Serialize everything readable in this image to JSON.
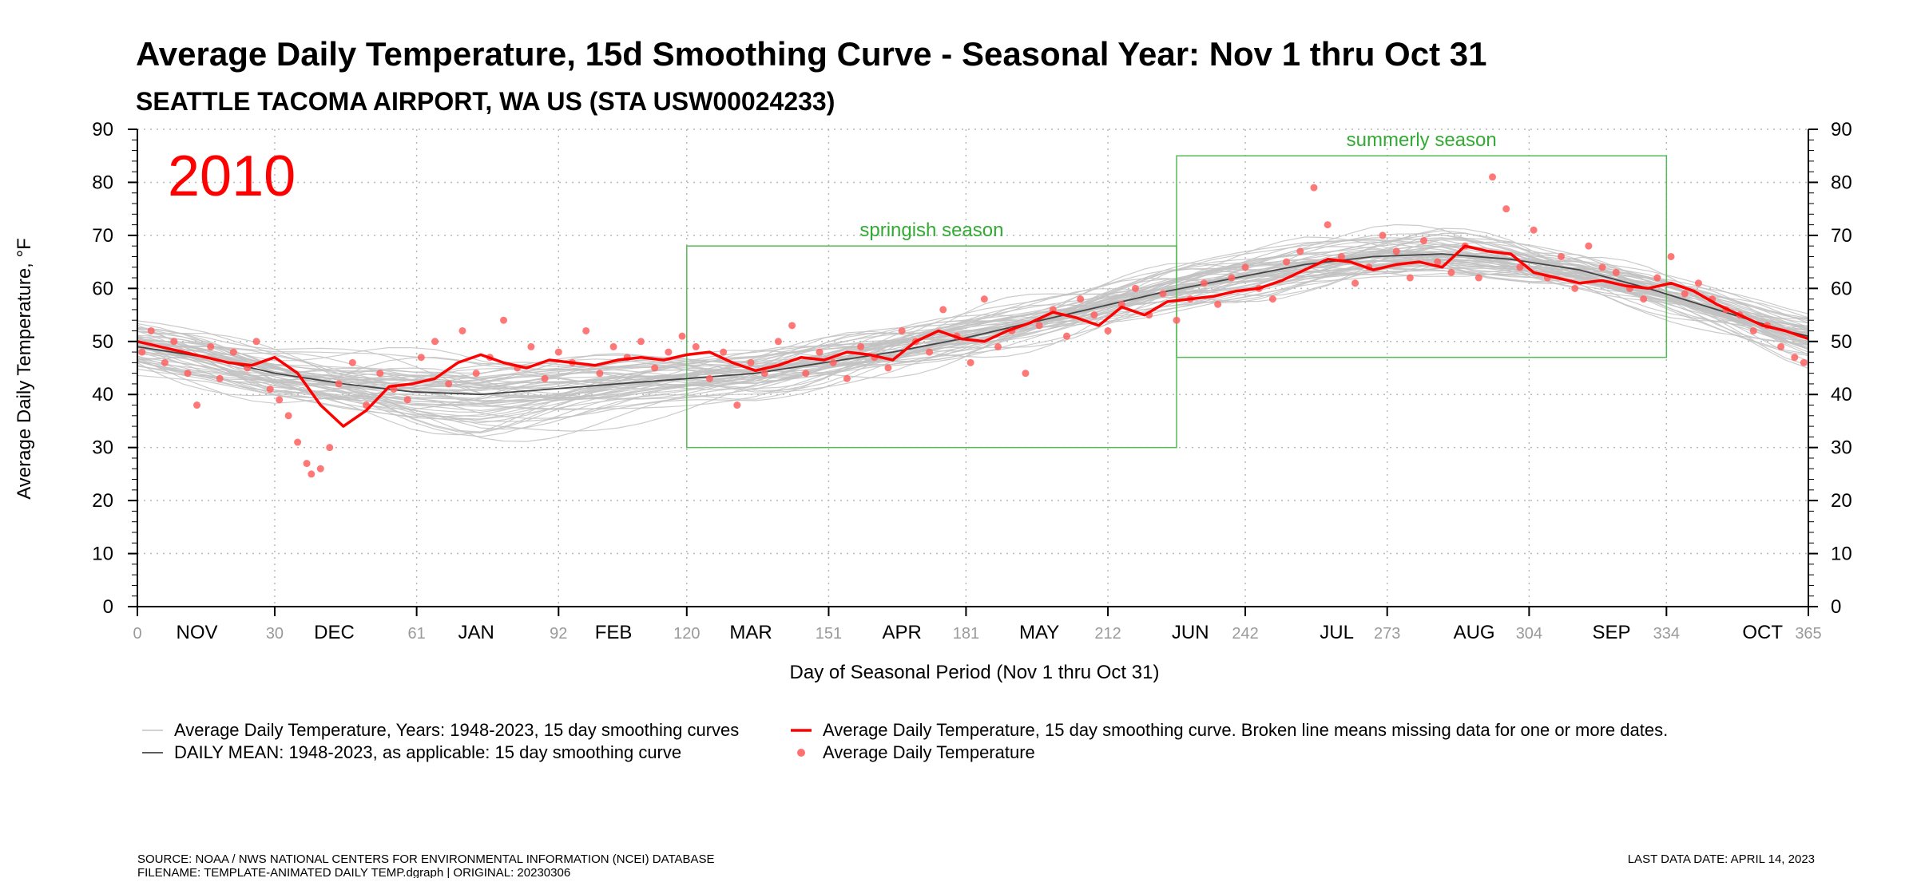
{
  "colors": {
    "background_curves": "#c2c2c2",
    "daily_mean": "#444444",
    "year_curve": "#ff0000",
    "year_points": "#ff6060",
    "season_box": "#55bb55",
    "season_label": "#33aa33",
    "day_tick_label": "#9a9a9a"
  },
  "footer": {
    "source": "SOURCE: NOAA / NWS NATIONAL CENTERS FOR ENVIRONMENTAL INFORMATION (NCEI) DATABASE",
    "filename": "FILENAME: TEMPLATE-ANIMATED DAILY TEMP.dgraph | ORIGINAL: 20230306",
    "last_data_date": "LAST DATA DATE: APRIL 14, 2023"
  },
  "chart_data": {
    "type": "line",
    "title": "Average Daily Temperature, 15d Smoothing Curve - Seasonal Year: Nov 1 thru Oct 31",
    "subtitle": "SEATTLE TACOMA AIRPORT, WA US (STA USW00024233)",
    "year_label": "2010",
    "xlabel": "Day of Seasonal Period (Nov 1 thru Oct 31)",
    "ylabel": "Average Daily Temperature, °F",
    "xlim": [
      0,
      365
    ],
    "ylim": [
      0,
      90
    ],
    "grid": true,
    "grid_style": "dotted",
    "legend_position": "bottom",
    "y_ticks": [
      0,
      10,
      20,
      30,
      40,
      50,
      60,
      70,
      80,
      90
    ],
    "x_day_ticks": [
      {
        "day": 0,
        "label": "0"
      },
      {
        "day": 30,
        "label": "30"
      },
      {
        "day": 61,
        "label": "61"
      },
      {
        "day": 92,
        "label": "92"
      },
      {
        "day": 120,
        "label": "120"
      },
      {
        "day": 151,
        "label": "151"
      },
      {
        "day": 181,
        "label": "181"
      },
      {
        "day": 212,
        "label": "212"
      },
      {
        "day": 242,
        "label": "242"
      },
      {
        "day": 273,
        "label": "273"
      },
      {
        "day": 304,
        "label": "304"
      },
      {
        "day": 334,
        "label": "334"
      },
      {
        "day": 365,
        "label": "365"
      }
    ],
    "month_labels": [
      {
        "label": "NOV",
        "day": 13
      },
      {
        "label": "DEC",
        "day": 43
      },
      {
        "label": "JAN",
        "day": 74
      },
      {
        "label": "FEB",
        "day": 104
      },
      {
        "label": "MAR",
        "day": 134
      },
      {
        "label": "APR",
        "day": 167
      },
      {
        "label": "MAY",
        "day": 197
      },
      {
        "label": "JUN",
        "day": 230
      },
      {
        "label": "JUL",
        "day": 262
      },
      {
        "label": "AUG",
        "day": 292
      },
      {
        "label": "SEP",
        "day": 322
      },
      {
        "label": "OCT",
        "day": 355
      }
    ],
    "seasons": [
      {
        "label": "springish season",
        "x_start": 120,
        "x_end": 227,
        "y_low": 30,
        "y_high": 68
      },
      {
        "label": "summerly season",
        "x_start": 227,
        "x_end": 334,
        "y_low": 47,
        "y_high": 85
      }
    ],
    "series": [
      {
        "name": "DAILY MEAN: 1948-2023, as applicable: 15 day smoothing curve",
        "x": [
          0,
          15,
          30,
          45,
          60,
          75,
          90,
          105,
          120,
          135,
          150,
          165,
          180,
          195,
          210,
          225,
          240,
          255,
          270,
          285,
          300,
          315,
          330,
          345,
          360,
          365
        ],
        "values": [
          49,
          47,
          44,
          42,
          40.5,
          40,
          41,
          42,
          43,
          44,
          46,
          48,
          50.5,
          53.5,
          56.5,
          59.5,
          62,
          64.5,
          66,
          66.5,
          65.5,
          63.5,
          60,
          56,
          52,
          51
        ]
      },
      {
        "name": "Average Daily Temperature, 15 day smoothing curve. Broken line means missing data for one or more dates.",
        "x": [
          0,
          5,
          10,
          15,
          20,
          25,
          30,
          35,
          40,
          45,
          50,
          55,
          60,
          65,
          70,
          75,
          80,
          85,
          90,
          95,
          100,
          105,
          110,
          115,
          120,
          125,
          130,
          135,
          140,
          145,
          150,
          155,
          160,
          165,
          170,
          175,
          180,
          185,
          190,
          195,
          200,
          205,
          210,
          215,
          220,
          225,
          230,
          235,
          240,
          245,
          250,
          255,
          260,
          265,
          270,
          275,
          280,
          285,
          290,
          295,
          300,
          305,
          310,
          315,
          320,
          325,
          330,
          335,
          340,
          345,
          350,
          355,
          360,
          365
        ],
        "values": [
          50,
          49,
          48,
          47,
          46,
          45.5,
          47,
          44,
          38,
          34,
          37,
          41.5,
          42,
          43,
          46,
          47.5,
          46,
          45,
          46.5,
          46,
          45.5,
          46.5,
          47,
          46.5,
          47.5,
          48,
          46,
          44.5,
          45.5,
          47,
          46.5,
          48,
          47.5,
          46.5,
          50,
          52,
          50.5,
          50,
          52,
          53.5,
          55.5,
          54.5,
          53,
          56.5,
          55,
          57.5,
          58,
          58.5,
          59.5,
          60,
          61.5,
          63.5,
          65.5,
          65,
          63.5,
          64.5,
          65,
          64,
          68,
          67,
          66.5,
          63,
          62,
          61,
          61.5,
          60.5,
          60,
          61,
          59.5,
          57,
          55,
          53,
          52,
          50.5
        ]
      },
      {
        "name": "Average Daily Temperature",
        "x": [
          1,
          3,
          6,
          8,
          11,
          13,
          16,
          18,
          21,
          24,
          26,
          29,
          31,
          33,
          35,
          37,
          38,
          40,
          42,
          44,
          47,
          50,
          53,
          56,
          59,
          62,
          65,
          68,
          71,
          74,
          77,
          80,
          83,
          86,
          89,
          92,
          95,
          98,
          101,
          104,
          107,
          110,
          113,
          116,
          119,
          122,
          125,
          128,
          131,
          134,
          137,
          140,
          143,
          146,
          149,
          152,
          155,
          158,
          161,
          164,
          167,
          170,
          173,
          176,
          179,
          182,
          185,
          188,
          191,
          194,
          197,
          200,
          203,
          206,
          209,
          212,
          215,
          218,
          221,
          224,
          227,
          230,
          233,
          236,
          239,
          242,
          245,
          248,
          251,
          254,
          257,
          260,
          263,
          266,
          269,
          272,
          275,
          278,
          281,
          284,
          287,
          290,
          293,
          296,
          299,
          302,
          305,
          308,
          311,
          314,
          317,
          320,
          323,
          326,
          329,
          332,
          335,
          338,
          341,
          344,
          347,
          350,
          353,
          356,
          359,
          362,
          364
        ],
        "values": [
          48,
          52,
          46,
          50,
          44,
          38,
          49,
          43,
          48,
          45,
          50,
          41,
          39,
          36,
          31,
          27,
          25,
          26,
          30,
          42,
          46,
          38,
          44,
          41,
          39,
          47,
          50,
          42,
          52,
          44,
          47,
          54,
          45,
          49,
          43,
          48,
          46,
          52,
          44,
          49,
          47,
          50,
          45,
          48,
          51,
          49,
          43,
          48,
          38,
          46,
          44,
          50,
          53,
          44,
          48,
          46,
          43,
          49,
          47,
          45,
          52,
          50,
          48,
          56,
          51,
          46,
          58,
          49,
          52,
          44,
          53,
          56,
          51,
          58,
          55,
          52,
          57,
          60,
          55,
          59,
          54,
          58,
          61,
          57,
          62,
          64,
          60,
          58,
          65,
          67,
          79,
          72,
          66,
          61,
          64,
          70,
          67,
          62,
          69,
          65,
          63,
          68,
          62,
          81,
          75,
          64,
          71,
          62,
          66,
          60,
          68,
          64,
          63,
          60,
          58,
          62,
          66,
          59,
          61,
          58,
          56,
          55,
          52,
          53,
          49,
          47,
          46
        ]
      }
    ],
    "background_curves_label": "Average Daily Temperature, Years: 1948-2023, 15 day smoothing curves",
    "legend": [
      {
        "label": "Average Daily Temperature, Years: 1948-2023, 15 day smoothing curves",
        "kind": "line",
        "color": "#c2c2c2"
      },
      {
        "label": "DAILY MEAN: 1948-2023, as applicable: 15 day smoothing curve",
        "kind": "line",
        "color": "#444444"
      },
      {
        "label": "Average Daily Temperature, 15 day smoothing curve. Broken line means missing data for one or more dates.",
        "kind": "line",
        "color": "#ff0000"
      },
      {
        "label": "Average Daily Temperature",
        "kind": "point",
        "color": "#ff6060"
      }
    ]
  }
}
